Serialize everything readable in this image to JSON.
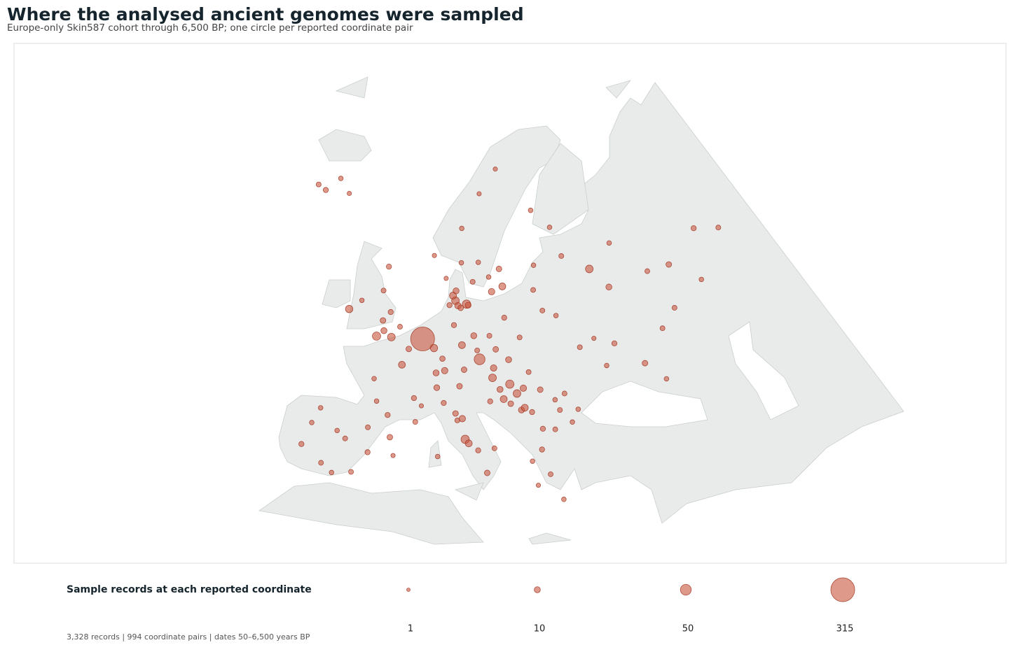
{
  "chart_data": {
    "type": "bubble-map",
    "title": "Where the analysed ancient genomes were sampled",
    "subtitle": "Europe-only Skin587 cohort through 6,500 BP; one circle per reported coordinate pair",
    "color": "#c8553d",
    "x": [
      5,
      10,
      9.5,
      10.5,
      12,
      11,
      9,
      10,
      12.3,
      13,
      16,
      18,
      16.5,
      18.5,
      14,
      10.7,
      5.3,
      10.4,
      14,
      18,
      8,
      -1.5,
      -0.1,
      -2,
      -1,
      -3,
      -3,
      1,
      -2.5,
      -8,
      -6.3,
      -21.9,
      -18,
      -20,
      -15,
      2.3,
      4.8,
      -1.5,
      1.4,
      5.4,
      7.7,
      3,
      -0.5,
      6,
      13.4,
      11.5,
      9,
      10,
      7,
      12,
      8.5,
      14,
      8,
      11.4,
      16.4,
      14.4,
      16.6,
      19,
      17,
      21,
      18.6,
      16,
      19,
      20,
      18,
      21,
      17.5,
      16,
      20.5,
      19,
      21,
      22,
      23.5,
      26,
      27,
      25.5,
      28.6,
      23.3,
      25,
      27.5,
      22.9,
      21.5,
      23.7,
      25,
      22,
      11,
      9.2,
      12.5,
      13,
      14.3,
      16.5,
      15.5,
      8.9,
      11.3,
      12,
      -3.7,
      2.2,
      -0.4,
      -6,
      -9.1,
      -8.6,
      -1,
      -4.4,
      -8,
      -5,
      -2,
      3,
      24.1,
      24.7,
      27.5,
      25.3,
      30.3,
      37.6,
      33,
      39.7,
      44,
      47,
      49,
      56,
      53,
      45,
      40,
      60,
      35,
      30.5,
      34,
      36,
      22,
      42,
      25.5,
      29
    ],
    "y": [
      51.8,
      56,
      56.5,
      55.5,
      55.7,
      55.3,
      55.5,
      57,
      55.6,
      58,
      58.5,
      59.3,
      57,
      57.5,
      60,
      59.9,
      60.4,
      63.4,
      67,
      69.5,
      58.2,
      52,
      51.5,
      53,
      54,
      56,
      58.5,
      52.7,
      51.3,
      53.3,
      54.5,
      64.1,
      65.6,
      63.9,
      64.5,
      48.9,
      45.7,
      47,
      43.6,
      43.3,
      48.5,
      50.6,
      44.8,
      45,
      52.5,
      51.5,
      48.8,
      53.5,
      51,
      49,
      50,
      51,
      47,
      47.3,
      48.2,
      50.1,
      49.2,
      50,
      51.1,
      52.2,
      54.3,
      52.5,
      47.5,
      46.5,
      46,
      47,
      47,
      45.8,
      44.8,
      45.5,
      45,
      44.5,
      46.7,
      44.4,
      46,
      45.5,
      44.2,
      42.7,
      42.5,
      43,
      40.6,
      39.5,
      38,
      35.3,
      37,
      44.5,
      45.5,
      41.9,
      41.5,
      40.8,
      41,
      38.5,
      40,
      43.8,
      44,
      40.4,
      41.4,
      39.5,
      37.4,
      38.7,
      41.1,
      42,
      36.7,
      42.8,
      41,
      37.2,
      39.6,
      56.9,
      59.4,
      54,
      54.7,
      59.9,
      55.7,
      51,
      47.2,
      50,
      51.5,
      55.8,
      58,
      53,
      56,
      60,
      56.8,
      58,
      50.4,
      48,
      50,
      48.6,
      45,
      65,
      63
    ],
    "sizes": [
      315,
      20,
      15,
      12,
      25,
      8,
      6,
      10,
      9,
      5,
      4,
      8,
      12,
      15,
      4,
      4,
      3,
      4,
      3,
      3,
      3,
      10,
      20,
      8,
      6,
      5,
      6,
      5,
      25,
      18,
      4,
      5,
      4,
      6,
      3,
      15,
      6,
      4,
      6,
      5,
      10,
      8,
      4,
      3,
      10,
      15,
      12,
      6,
      18,
      8,
      7,
      5,
      9,
      8,
      20,
      50,
      12,
      10,
      8,
      5,
      6,
      5,
      25,
      20,
      15,
      12,
      10,
      6,
      10,
      8,
      15,
      6,
      8,
      5,
      5,
      4,
      4,
      6,
      5,
      4,
      6,
      4,
      5,
      4,
      3,
      8,
      6,
      25,
      15,
      6,
      5,
      8,
      4,
      5,
      12,
      5,
      8,
      6,
      5,
      6,
      4,
      5,
      4,
      4,
      4,
      5,
      3,
      5,
      4,
      4,
      5,
      5,
      10,
      3,
      8,
      5,
      5,
      8,
      6,
      4,
      5,
      4,
      5,
      20,
      5,
      4,
      6,
      5,
      4,
      4,
      4
    ],
    "size_legend": {
      "title": "Sample records at each reported coordinate",
      "values": [
        1,
        10,
        50,
        315
      ]
    },
    "footer": "3,328 records  |  994 coordinate pairs  |  dates 50–6,500 years BP"
  }
}
